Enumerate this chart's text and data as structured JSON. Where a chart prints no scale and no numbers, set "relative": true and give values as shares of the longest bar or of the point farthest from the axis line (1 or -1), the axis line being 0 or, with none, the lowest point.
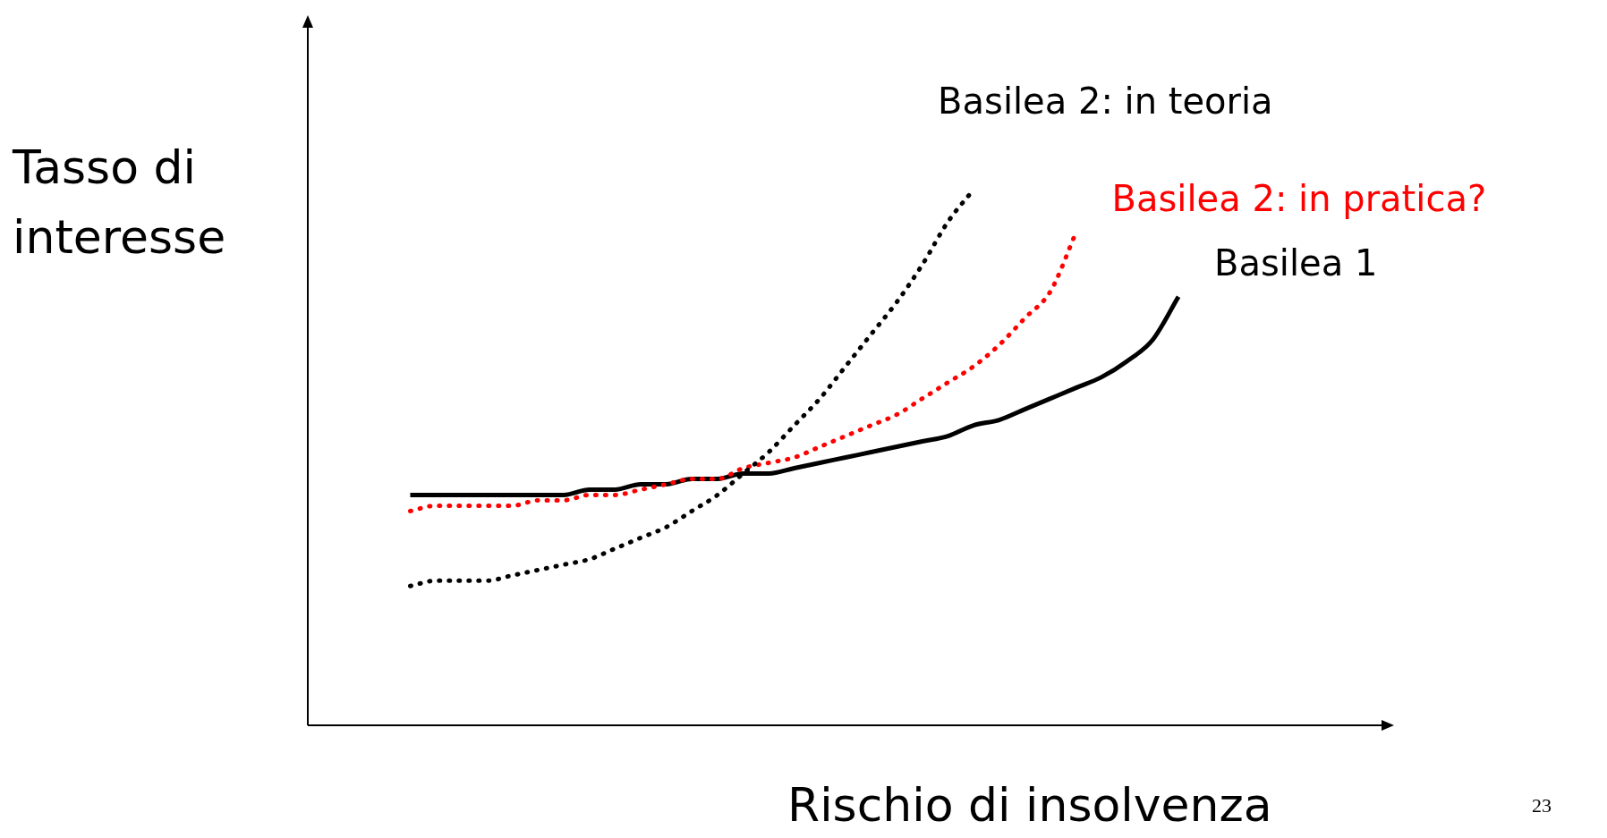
{
  "chart_data": {
    "type": "line",
    "relative": true,
    "xlabel": "Rischio di insolvenza",
    "ylabel": "Tasso di interesse",
    "legend": false,
    "marker": "none",
    "annotations": [
      "23"
    ],
    "categories": [
      null,
      null,
      null,
      null,
      null,
      null,
      null,
      null,
      null,
      null,
      null,
      null,
      null,
      null,
      null,
      null,
      null,
      null,
      null,
      null,
      null,
      null,
      null,
      null,
      null,
      null,
      null,
      null,
      null,
      null,
      null,
      null,
      null,
      null,
      null,
      null,
      null,
      null,
      null,
      null,
      null,
      null,
      null
    ],
    "series": [
      {
        "name": "Basilea 2: in teoria",
        "color": "#000000",
        "line_style": "dotted",
        "values": [
          null,
          null,
          null,
          null,
          0.26,
          0.27,
          0.27,
          0.27,
          0.28,
          0.29,
          0.3,
          0.31,
          0.33,
          0.35,
          0.37,
          0.4,
          0.43,
          0.47,
          0.51,
          0.56,
          0.61,
          0.67,
          0.73,
          0.79,
          0.86,
          0.94,
          1.0,
          null,
          null,
          null,
          null,
          null,
          null,
          null,
          null,
          null,
          null,
          null,
          null,
          null,
          null,
          null,
          null
        ]
      },
      {
        "name": "Basilea 2: in pratica?",
        "color": "#ff0000",
        "line_style": "dotted",
        "values": [
          null,
          null,
          null,
          null,
          0.4,
          0.41,
          0.41,
          0.41,
          0.41,
          0.42,
          0.42,
          0.43,
          0.43,
          0.44,
          0.45,
          0.46,
          0.46,
          0.48,
          0.49,
          0.5,
          0.52,
          0.54,
          0.56,
          0.58,
          0.61,
          0.64,
          0.67,
          0.71,
          0.76,
          0.81,
          0.92,
          null,
          null,
          null,
          null,
          null,
          null,
          null,
          null,
          null,
          null,
          null,
          null
        ]
      },
      {
        "name": "Basilea 1",
        "color": "#000000",
        "line_style": "solid",
        "values": [
          null,
          null,
          null,
          null,
          0.43,
          0.43,
          0.43,
          0.43,
          0.43,
          0.43,
          0.43,
          0.44,
          0.44,
          0.45,
          0.45,
          0.46,
          0.46,
          0.47,
          0.47,
          0.48,
          0.49,
          0.5,
          0.51,
          0.52,
          0.53,
          0.54,
          0.56,
          0.57,
          0.59,
          0.61,
          0.63,
          0.65,
          0.68,
          0.72,
          0.8,
          null,
          null,
          null,
          null,
          null,
          null,
          null,
          null
        ]
      }
    ]
  }
}
